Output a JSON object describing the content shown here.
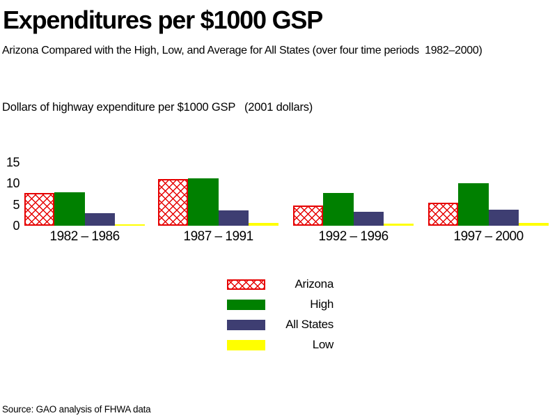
{
  "header": {
    "title": "Expenditures per $1000 GSP",
    "subtitle": "Arizona Compared with the High, Low, and Average for All States (over four time periods  1982–2000)",
    "units_label": "Dollars of highway expenditure per $1000 GSP   (2001 dollars)"
  },
  "source": "Source: GAO analysis of FHWA data",
  "colors": {
    "arizona": "#e60000",
    "high": "#008000",
    "all_states": "#3e3e72",
    "low": "#ffff00",
    "background": "#ffffff",
    "text": "#000000"
  },
  "chart_data": {
    "type": "bar",
    "title": "Expenditures per $1000 GSP",
    "subtitle": "Arizona Compared with the High, Low, and Average for All States (over four time periods 1982–2000)",
    "ylabel": "Dollars of highway expenditure per $1000 GSP (2001 dollars)",
    "categories": [
      "1982 – 1986",
      "1987 – 1991",
      "1992 – 1996",
      "1997 – 2000"
    ],
    "series": [
      {
        "name": "Arizona",
        "pattern": "crosshatch",
        "color": "#e60000",
        "values": [
          7.7,
          11.0,
          4.7,
          5.4
        ]
      },
      {
        "name": "High",
        "pattern": "solid",
        "color": "#008000",
        "values": [
          7.9,
          11.2,
          7.7,
          10.1
        ]
      },
      {
        "name": "All States",
        "pattern": "solid",
        "color": "#3e3e72",
        "values": [
          3.0,
          3.7,
          3.3,
          3.8
        ]
      },
      {
        "name": "Low",
        "pattern": "solid",
        "color": "#ffff00",
        "values": [
          0.4,
          0.7,
          0.5,
          0.6
        ]
      }
    ],
    "yticks": [
      0,
      5,
      10,
      15
    ],
    "ylim": [
      0,
      15
    ],
    "grid": false,
    "axis_lines": false,
    "legend": [
      "Arizona",
      "High",
      "All States",
      "Low"
    ],
    "legend_position": "bottom-center"
  }
}
